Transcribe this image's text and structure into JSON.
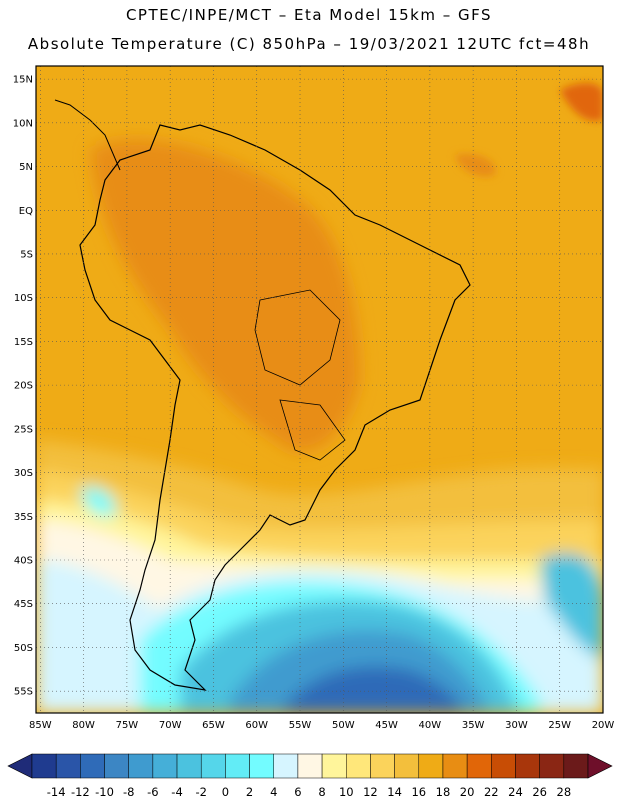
{
  "title": {
    "line1": "CPTEC/INPE/MCT –  Eta Model 15km – GFS",
    "line2": "Absolute Temperature (C) 850hPa – 19/03/2021 12UTC fct=48h"
  },
  "map": {
    "region": "South America",
    "lat_labels": [
      "15N",
      "10N",
      "5N",
      "EQ",
      "5S",
      "10S",
      "15S",
      "20S",
      "25S",
      "30S",
      "35S",
      "40S",
      "45S",
      "50S",
      "55S"
    ],
    "lon_labels": [
      "85W",
      "80W",
      "75W",
      "70W",
      "65W",
      "60W",
      "55W",
      "50W",
      "45W",
      "40W",
      "35W",
      "30W",
      "25W",
      "20W"
    ],
    "lat_range": [
      -57.5,
      16.5
    ],
    "lon_range": [
      -85.5,
      -20
    ]
  },
  "colorbar": {
    "labels": [
      "-14",
      "-12",
      "-10",
      "-8",
      "-6",
      "-4",
      "-2",
      "0",
      "2",
      "4",
      "6",
      "8",
      "10",
      "12",
      "14",
      "16",
      "18",
      "20",
      "22",
      "24",
      "26",
      "28"
    ],
    "colors": [
      "#1f3b8f",
      "#2a55a8",
      "#2f6bb8",
      "#3c86c4",
      "#3f9bcf",
      "#45afd8",
      "#4bc2df",
      "#55d6ea",
      "#62ecf6",
      "#73fcff",
      "#d6f5ff",
      "#fff7e4",
      "#fff59b",
      "#ffe77a",
      "#fbd35b",
      "#f3bf3c",
      "#efab16",
      "#e88d13",
      "#e16608",
      "#c84d05",
      "#a8360b",
      "#8a2614",
      "#6b1a1a"
    ],
    "under_color": "#1f2b78",
    "over_color": "#6e0f2a"
  }
}
